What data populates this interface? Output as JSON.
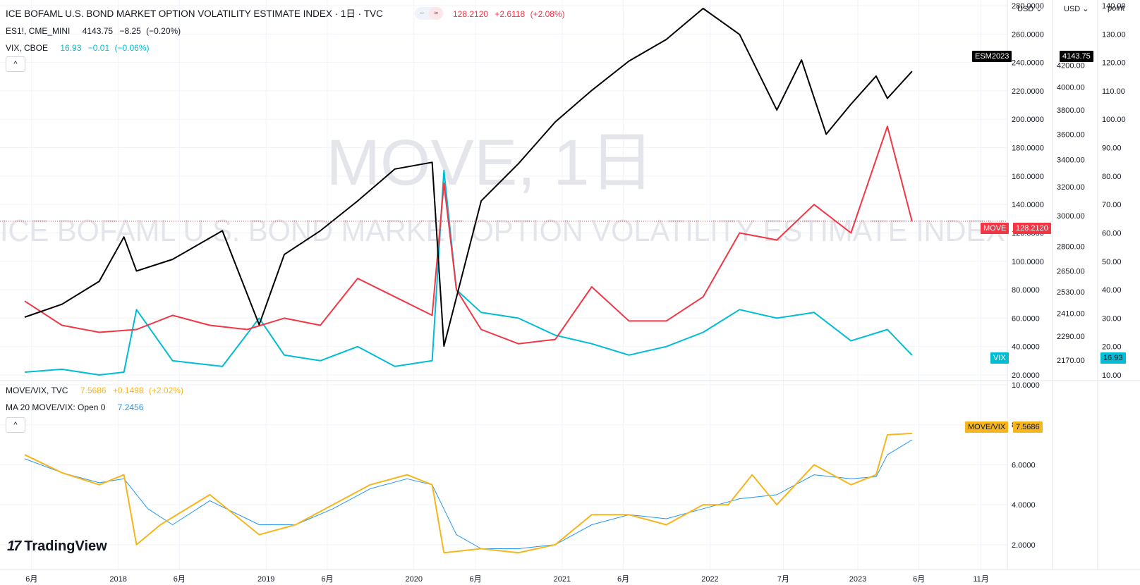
{
  "chart_data": {
    "type": "line",
    "panes": [
      {
        "id": "main",
        "title": "ICE BOFAML U.S. BOND MARKET OPTION VOLATILITY ESTIMATE INDEX · 1日 · TVC",
        "watermark_symbol": "MOVE, 1日",
        "watermark_name": "ICE BOFAML U.S. BOND MARKET OPTION VOLATILITY ESTIMATE INDEX",
        "series": [
          {
            "name": "ICE BOFAML U.S. BOND MARKET OPTION VOLATILITY ESTIMATE INDEX",
            "badge": "MOVE",
            "color": "#f23645",
            "axis": "left_usd",
            "last": "128.2120",
            "change": "+2.6118",
            "change_pct": "(+2.08%)",
            "x": [
              "2017-05",
              "2017-08",
              "2017-11",
              "2018-02",
              "2018-05",
              "2018-08",
              "2018-11",
              "2019-02",
              "2019-05",
              "2019-08",
              "2019-11",
              "2020-02",
              "2020-03",
              "2020-04",
              "2020-06",
              "2020-09",
              "2020-12",
              "2021-03",
              "2021-06",
              "2021-09",
              "2021-12",
              "2022-03",
              "2022-06",
              "2022-09",
              "2022-12",
              "2023-03",
              "2023-05"
            ],
            "y": [
              72,
              55,
              50,
              52,
              62,
              55,
              52,
              60,
              55,
              88,
              75,
              62,
              155,
              80,
              52,
              42,
              45,
              82,
              58,
              58,
              75,
              120,
              115,
              140,
              120,
              195,
              128
            ]
          },
          {
            "name": "ES1!, CME_MINI",
            "badge": "ESM2023",
            "color": "#000000",
            "axis": "right_usd",
            "last": "4143.75",
            "change": "−8.25",
            "change_pct": "(−0.20%)",
            "x": [
              "2017-05",
              "2017-08",
              "2017-11",
              "2018-01",
              "2018-02",
              "2018-05",
              "2018-09",
              "2018-12",
              "2019-02",
              "2019-05",
              "2019-08",
              "2019-11",
              "2020-02",
              "2020-03",
              "2020-06",
              "2020-09",
              "2020-12",
              "2021-03",
              "2021-06",
              "2021-09",
              "2021-12",
              "2022-03",
              "2022-06",
              "2022-08",
              "2022-10",
              "2022-12",
              "2023-02",
              "2023-03",
              "2023-05"
            ],
            "y": [
              2390,
              2460,
              2590,
              2860,
              2650,
              2720,
              2900,
              2350,
              2750,
              2900,
              3100,
              3330,
              3380,
              2240,
              3100,
              3370,
              3700,
              3970,
              4240,
              4450,
              4770,
              4500,
              3800,
              4250,
              3600,
              3850,
              4100,
              3900,
              4143.75
            ]
          },
          {
            "name": "VIX, CBOE",
            "badge": "VIX",
            "color": "#00bcd4",
            "axis": "points",
            "last": "16.93",
            "change": "−0.01",
            "change_pct": "(−0.06%)",
            "x": [
              "2017-05",
              "2017-08",
              "2017-11",
              "2018-01",
              "2018-02",
              "2018-05",
              "2018-09",
              "2018-12",
              "2019-02",
              "2019-05",
              "2019-08",
              "2019-11",
              "2020-02",
              "2020-03",
              "2020-04",
              "2020-06",
              "2020-09",
              "2020-12",
              "2021-03",
              "2021-06",
              "2021-09",
              "2021-12",
              "2022-03",
              "2022-06",
              "2022-09",
              "2022-12",
              "2023-03",
              "2023-05"
            ],
            "y": [
              11,
              12,
              10,
              11,
              33,
              15,
              13,
              30,
              17,
              15,
              20,
              13,
              15,
              82,
              40,
              32,
              30,
              24,
              21,
              17,
              20,
              25,
              33,
              30,
              32,
              22,
              26,
              16.93
            ]
          }
        ]
      },
      {
        "id": "ratio",
        "series": [
          {
            "name": "MOVE/VIX, TVC",
            "badge": "MOVE/VIX",
            "color": "#f7b51d",
            "axis": "ratio",
            "last": "7.5686",
            "change": "+0.1498",
            "change_pct": "(+2.02%)",
            "x": [
              "2017-05",
              "2017-08",
              "2017-11",
              "2018-01",
              "2018-02",
              "2018-04",
              "2018-08",
              "2018-12",
              "2019-03",
              "2019-06",
              "2019-09",
              "2019-12",
              "2020-02",
              "2020-03",
              "2020-06",
              "2020-09",
              "2020-12",
              "2021-03",
              "2021-06",
              "2021-09",
              "2021-12",
              "2022-02",
              "2022-04",
              "2022-06",
              "2022-09",
              "2022-12",
              "2023-02",
              "2023-03",
              "2023-05"
            ],
            "y": [
              6.5,
              5.6,
              5.0,
              5.5,
              2.0,
              3.0,
              4.5,
              2.5,
              3.0,
              4.0,
              5.0,
              5.5,
              5.0,
              1.6,
              1.8,
              1.6,
              2.0,
              3.5,
              3.5,
              3.0,
              4.0,
              4.0,
              5.5,
              4.0,
              6.0,
              5.0,
              5.5,
              7.5,
              7.5686
            ]
          },
          {
            "name": "MA 20 MOVE/VIX: Open 0",
            "color": "#2196f3",
            "axis": "ratio",
            "last": "7.2456",
            "x": [
              "2017-05",
              "2017-08",
              "2017-11",
              "2018-01",
              "2018-03",
              "2018-05",
              "2018-08",
              "2018-12",
              "2019-03",
              "2019-06",
              "2019-09",
              "2019-12",
              "2020-02",
              "2020-04",
              "2020-06",
              "2020-09",
              "2020-12",
              "2021-03",
              "2021-06",
              "2021-09",
              "2021-12",
              "2022-03",
              "2022-06",
              "2022-09",
              "2022-12",
              "2023-02",
              "2023-03",
              "2023-05"
            ],
            "y": [
              6.3,
              5.6,
              5.1,
              5.3,
              3.8,
              3.0,
              4.2,
              3.0,
              3.0,
              3.8,
              4.8,
              5.3,
              5.0,
              2.5,
              1.8,
              1.8,
              2.0,
              3.0,
              3.5,
              3.3,
              3.8,
              4.3,
              4.5,
              5.5,
              5.3,
              5.4,
              6.5,
              7.2456
            ]
          }
        ]
      }
    ],
    "axes": {
      "left_usd": {
        "unit": "USD",
        "ticks": [
          "280.0000",
          "260.0000",
          "240.0000",
          "220.0000",
          "200.0000",
          "180.0000",
          "160.0000",
          "140.0000",
          "120.0000",
          "100.0000",
          "80.0000",
          "60.0000",
          "40.0000",
          "20.0000"
        ],
        "range": [
          20,
          280
        ]
      },
      "right_usd": {
        "unit": "USD",
        "ticks": [
          "4200.00",
          "4000.00",
          "3800.00",
          "3600.00",
          "3400.00",
          "3200.00",
          "3000.00",
          "2800.00",
          "2650.00",
          "2530.00",
          "2410.00",
          "2290.00",
          "2170.00"
        ],
        "scale": "log",
        "range": [
          2100,
          4800
        ]
      },
      "points": {
        "unit": "point",
        "ticks": [
          "140.00",
          "130.00",
          "120.00",
          "110.00",
          "100.00",
          "90.00",
          "80.00",
          "70.00",
          "60.00",
          "50.00",
          "40.00",
          "30.00",
          "20.00",
          "10.00"
        ],
        "range": [
          10,
          140
        ]
      },
      "ratio": {
        "ticks": [
          "10.0000",
          "8.0000",
          "6.0000",
          "4.0000",
          "2.0000"
        ],
        "range": [
          0.9,
          10
        ]
      },
      "x": {
        "range": [
          "2017-03-15",
          "2023-12-31"
        ],
        "ticks": [
          {
            "label": "6月",
            "date": "2017-06-01"
          },
          {
            "label": "2018",
            "date": "2018-01-01"
          },
          {
            "label": "6月",
            "date": "2018-06-01"
          },
          {
            "label": "2019",
            "date": "2019-01-01"
          },
          {
            "label": "6月",
            "date": "2019-06-01"
          },
          {
            "label": "2020",
            "date": "2020-01-01"
          },
          {
            "label": "6月",
            "date": "2020-06-01"
          },
          {
            "label": "2021",
            "date": "2021-01-01"
          },
          {
            "label": "6月",
            "date": "2021-06-01"
          },
          {
            "label": "2022",
            "date": "2022-01-01"
          },
          {
            "label": "7月",
            "date": "2022-07-01"
          },
          {
            "label": "2023",
            "date": "2023-01-01"
          },
          {
            "label": "6月",
            "date": "2023-06-01"
          },
          {
            "label": "11月",
            "date": "2023-11-01"
          }
        ]
      }
    },
    "grid": true,
    "legend": "top-left"
  },
  "ui": {
    "price_line_value": "128.2120",
    "brand": "TradingView",
    "collapse_glyph": "^",
    "pill_left_glyph": "−",
    "pill_right_glyph": "≈"
  }
}
